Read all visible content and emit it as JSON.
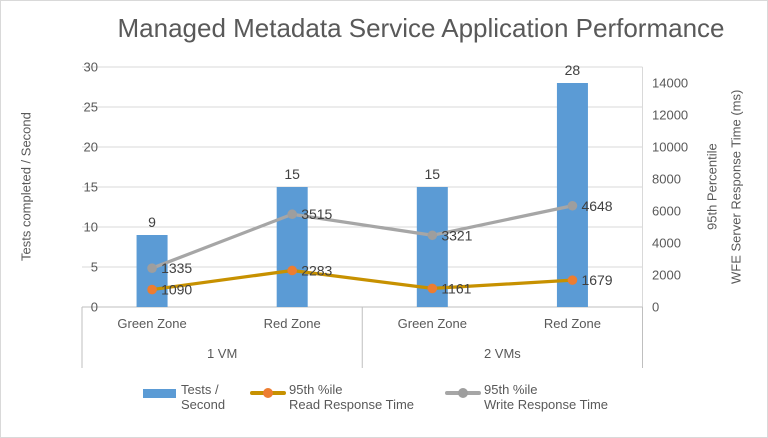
{
  "colors": {
    "bar": "#5B9BD5",
    "read_line": "#C79100",
    "read_marker": "#ED7D31",
    "write_line": "#A6A6A6",
    "write_marker": "#9E9E9E",
    "text": "#595959",
    "data_label": "#404040",
    "gridline": "#D9D9D9",
    "axis_line": "#BFBFBF"
  },
  "chart_data": {
    "type": "combo-bar-line",
    "title": "Managed Metadata Service Application Performance",
    "categories": [
      "Green Zone",
      "Red Zone",
      "Green Zone",
      "Red Zone"
    ],
    "category_groups": [
      {
        "label": "1 VM",
        "span": 2
      },
      {
        "label": "2 VMs",
        "span": 2
      }
    ],
    "series": [
      {
        "name": "Tests / Second",
        "type": "bar",
        "axis": "primary",
        "color": "#5B9BD5",
        "values": [
          9,
          15,
          15,
          28
        ]
      },
      {
        "name": "95th %ile Read Response Time",
        "type": "line",
        "axis": "secondary",
        "line_color": "#C79100",
        "marker_color": "#ED7D31",
        "plotted_as": "absolute",
        "values": [
          1090,
          2283,
          1161,
          1679
        ]
      },
      {
        "name": "95th %ile Write Response Time",
        "type": "line",
        "axis": "secondary",
        "line_color": "#A6A6A6",
        "marker_color": "#9E9E9E",
        "plotted_as": "cumulative",
        "values": [
          1335,
          3515,
          3321,
          4648
        ]
      }
    ],
    "primary_axis": {
      "title": "Tests completed / Second",
      "min": 0,
      "max": 30,
      "step": 5,
      "ticks": [
        0,
        5,
        10,
        15,
        20,
        25,
        30
      ]
    },
    "secondary_axis": {
      "title_line1": "95th Percentile",
      "title_line2": "WFE Server Response Time (ms)",
      "min": 0,
      "max": 15000,
      "step": 2000,
      "ticks": [
        0,
        2000,
        4000,
        6000,
        8000,
        10000,
        12000,
        14000
      ]
    },
    "gridlines": true,
    "legend_position": "bottom"
  },
  "legend": {
    "items": [
      {
        "label_line1": "Tests /",
        "label_line2": "Second"
      },
      {
        "label_line1": "95th %ile",
        "label_line2": "Read Response Time"
      },
      {
        "label_line1": "95th %ile",
        "label_line2": "Write Response Time"
      }
    ]
  }
}
